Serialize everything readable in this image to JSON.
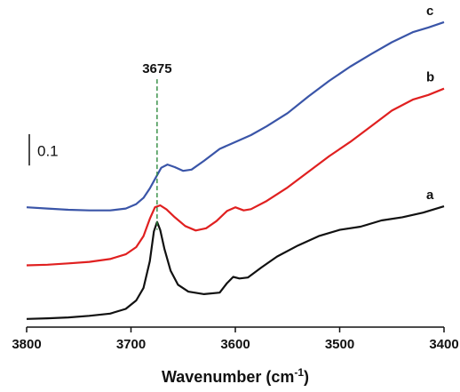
{
  "chart_data": {
    "type": "line",
    "title": "",
    "xlabel": "Wavenumber (cm",
    "xlabel_sup": "-1",
    "xlabel_end": ")",
    "ylabel": "",
    "xlim": [
      3800,
      3400
    ],
    "x_reversed": true,
    "ylim": [
      0,
      1.0
    ],
    "grid": false,
    "x_ticks": [
      3800,
      3700,
      3600,
      3500,
      3400
    ],
    "x_tick_labels": [
      "3800",
      "3700",
      "3600",
      "3500",
      "3400"
    ],
    "scale_bar": {
      "value": 0.1,
      "label": "0.1"
    },
    "peak_marker": {
      "x": 3675,
      "label": "3675",
      "color": "#2e8b3e"
    },
    "series": [
      {
        "name": "a",
        "color": "#111111",
        "points": [
          [
            3800,
            0.026
          ],
          [
            3780,
            0.028
          ],
          [
            3760,
            0.031
          ],
          [
            3740,
            0.036
          ],
          [
            3720,
            0.043
          ],
          [
            3705,
            0.058
          ],
          [
            3695,
            0.085
          ],
          [
            3688,
            0.125
          ],
          [
            3682,
            0.21
          ],
          [
            3678,
            0.305
          ],
          [
            3675,
            0.335
          ],
          [
            3672,
            0.31
          ],
          [
            3668,
            0.25
          ],
          [
            3662,
            0.18
          ],
          [
            3655,
            0.135
          ],
          [
            3645,
            0.113
          ],
          [
            3630,
            0.105
          ],
          [
            3615,
            0.11
          ],
          [
            3608,
            0.14
          ],
          [
            3602,
            0.16
          ],
          [
            3596,
            0.155
          ],
          [
            3588,
            0.158
          ],
          [
            3575,
            0.19
          ],
          [
            3560,
            0.225
          ],
          [
            3540,
            0.26
          ],
          [
            3520,
            0.29
          ],
          [
            3500,
            0.31
          ],
          [
            3480,
            0.32
          ],
          [
            3460,
            0.34
          ],
          [
            3440,
            0.35
          ],
          [
            3420,
            0.365
          ],
          [
            3400,
            0.385
          ]
        ]
      },
      {
        "name": "b",
        "color": "#e02020",
        "points": [
          [
            3800,
            0.197
          ],
          [
            3780,
            0.199
          ],
          [
            3760,
            0.203
          ],
          [
            3740,
            0.208
          ],
          [
            3720,
            0.217
          ],
          [
            3705,
            0.232
          ],
          [
            3695,
            0.255
          ],
          [
            3688,
            0.29
          ],
          [
            3682,
            0.345
          ],
          [
            3677,
            0.382
          ],
          [
            3672,
            0.388
          ],
          [
            3666,
            0.375
          ],
          [
            3658,
            0.35
          ],
          [
            3648,
            0.322
          ],
          [
            3638,
            0.308
          ],
          [
            3628,
            0.315
          ],
          [
            3618,
            0.338
          ],
          [
            3608,
            0.37
          ],
          [
            3600,
            0.382
          ],
          [
            3592,
            0.372
          ],
          [
            3585,
            0.376
          ],
          [
            3570,
            0.402
          ],
          [
            3550,
            0.445
          ],
          [
            3530,
            0.495
          ],
          [
            3510,
            0.545
          ],
          [
            3490,
            0.59
          ],
          [
            3470,
            0.64
          ],
          [
            3450,
            0.69
          ],
          [
            3430,
            0.725
          ],
          [
            3415,
            0.74
          ],
          [
            3400,
            0.76
          ]
        ]
      },
      {
        "name": "c",
        "color": "#3a55a8",
        "points": [
          [
            3800,
            0.382
          ],
          [
            3780,
            0.378
          ],
          [
            3760,
            0.374
          ],
          [
            3740,
            0.372
          ],
          [
            3720,
            0.372
          ],
          [
            3705,
            0.378
          ],
          [
            3695,
            0.392
          ],
          [
            3688,
            0.412
          ],
          [
            3682,
            0.442
          ],
          [
            3676,
            0.478
          ],
          [
            3671,
            0.508
          ],
          [
            3665,
            0.518
          ],
          [
            3658,
            0.51
          ],
          [
            3650,
            0.498
          ],
          [
            3642,
            0.502
          ],
          [
            3630,
            0.53
          ],
          [
            3615,
            0.568
          ],
          [
            3600,
            0.59
          ],
          [
            3585,
            0.612
          ],
          [
            3570,
            0.64
          ],
          [
            3550,
            0.682
          ],
          [
            3530,
            0.735
          ],
          [
            3510,
            0.785
          ],
          [
            3490,
            0.83
          ],
          [
            3470,
            0.87
          ],
          [
            3450,
            0.908
          ],
          [
            3430,
            0.94
          ],
          [
            3415,
            0.955
          ],
          [
            3400,
            0.972
          ]
        ]
      }
    ]
  }
}
